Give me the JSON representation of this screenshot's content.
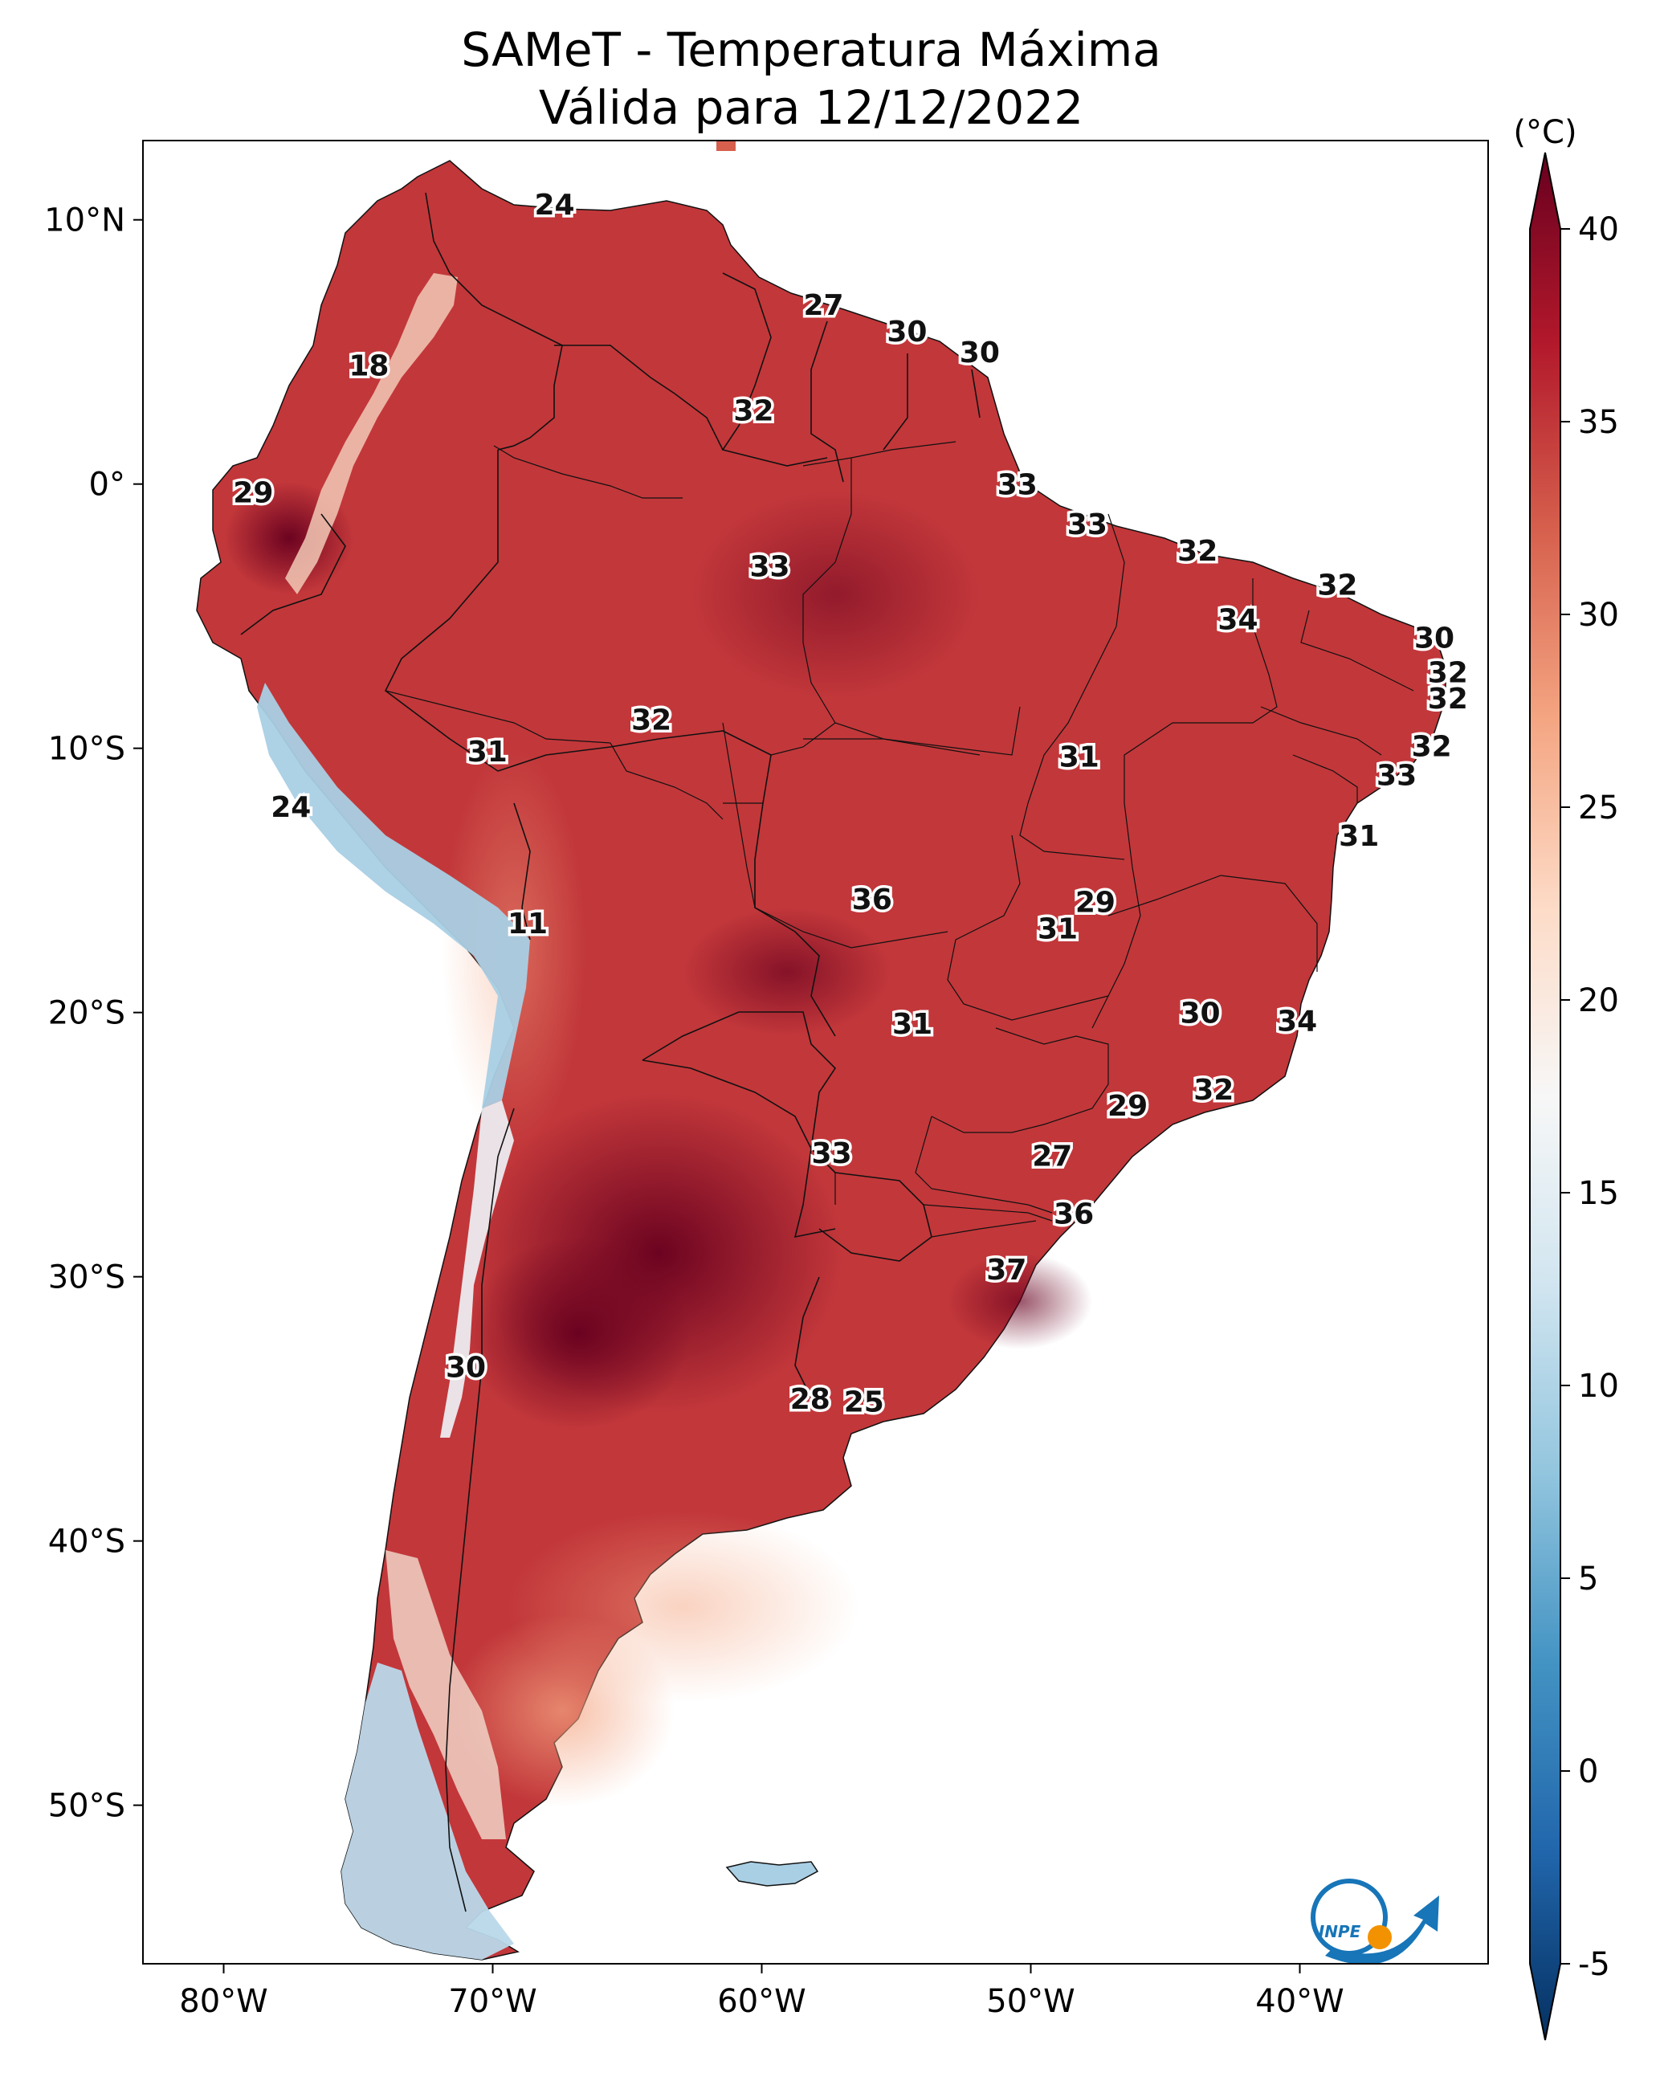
{
  "title": {
    "line1": "SAMeT - Temperatura Máxima",
    "line2": "Válida para 12/12/2022"
  },
  "map": {
    "lon_range": [
      -83,
      -33
    ],
    "lat_range": [
      -56,
      13
    ],
    "lat_ticks": [
      {
        "value": 10,
        "label": "10°N"
      },
      {
        "value": 0,
        "label": "0°"
      },
      {
        "value": -10,
        "label": "10°S"
      },
      {
        "value": -20,
        "label": "20°S"
      },
      {
        "value": -30,
        "label": "30°S"
      },
      {
        "value": -40,
        "label": "40°S"
      },
      {
        "value": -50,
        "label": "50°S"
      }
    ],
    "lon_ticks": [
      {
        "value": -80,
        "label": "80°W"
      },
      {
        "value": -70,
        "label": "70°W"
      },
      {
        "value": -60,
        "label": "60°W"
      },
      {
        "value": -50,
        "label": "50°W"
      },
      {
        "value": -40,
        "label": "40°W"
      }
    ],
    "labels": [
      {
        "text": "24",
        "lon": -67.7,
        "lat": 10.6
      },
      {
        "text": "27",
        "lon": -57.7,
        "lat": 6.8
      },
      {
        "text": "30",
        "lon": -54.6,
        "lat": 5.8
      },
      {
        "text": "30",
        "lon": -51.9,
        "lat": 5.0
      },
      {
        "text": "18",
        "lon": -74.6,
        "lat": 4.5
      },
      {
        "text": "32",
        "lon": -60.3,
        "lat": 2.8
      },
      {
        "text": "29",
        "lon": -78.9,
        "lat": -0.3
      },
      {
        "text": "33",
        "lon": -50.5,
        "lat": 0.0
      },
      {
        "text": "33",
        "lon": -47.9,
        "lat": -1.5
      },
      {
        "text": "32",
        "lon": -43.8,
        "lat": -2.5
      },
      {
        "text": "33",
        "lon": -59.7,
        "lat": -3.1
      },
      {
        "text": "32",
        "lon": -38.6,
        "lat": -3.8
      },
      {
        "text": "34",
        "lon": -42.3,
        "lat": -5.1
      },
      {
        "text": "30",
        "lon": -35.0,
        "lat": -5.8
      },
      {
        "text": "32",
        "lon": -34.5,
        "lat": -7.1
      },
      {
        "text": "32",
        "lon": -34.5,
        "lat": -8.1
      },
      {
        "text": "32",
        "lon": -64.1,
        "lat": -8.9
      },
      {
        "text": "31",
        "lon": -70.2,
        "lat": -10.1
      },
      {
        "text": "31",
        "lon": -48.2,
        "lat": -10.3
      },
      {
        "text": "32",
        "lon": -35.1,
        "lat": -9.9
      },
      {
        "text": "33",
        "lon": -36.4,
        "lat": -11.0
      },
      {
        "text": "24",
        "lon": -77.5,
        "lat": -12.2
      },
      {
        "text": "31",
        "lon": -37.8,
        "lat": -13.3
      },
      {
        "text": "36",
        "lon": -55.9,
        "lat": -15.7
      },
      {
        "text": "29",
        "lon": -47.6,
        "lat": -15.8
      },
      {
        "text": "11",
        "lon": -68.7,
        "lat": -16.6
      },
      {
        "text": "31",
        "lon": -49.0,
        "lat": -16.8
      },
      {
        "text": "30",
        "lon": -43.7,
        "lat": -20.0
      },
      {
        "text": "34",
        "lon": -40.1,
        "lat": -20.3
      },
      {
        "text": "31",
        "lon": -54.4,
        "lat": -20.4
      },
      {
        "text": "32",
        "lon": -43.2,
        "lat": -22.9
      },
      {
        "text": "29",
        "lon": -46.4,
        "lat": -23.5
      },
      {
        "text": "33",
        "lon": -57.4,
        "lat": -25.3
      },
      {
        "text": "27",
        "lon": -49.2,
        "lat": -25.4
      },
      {
        "text": "36",
        "lon": -48.4,
        "lat": -27.6
      },
      {
        "text": "37",
        "lon": -50.9,
        "lat": -29.7
      },
      {
        "text": "30",
        "lon": -71.0,
        "lat": -33.4
      },
      {
        "text": "28",
        "lon": -58.2,
        "lat": -34.6
      },
      {
        "text": "25",
        "lon": -56.2,
        "lat": -34.7
      }
    ],
    "logo_text": "INPE"
  },
  "colorbar": {
    "unit_label": "(°C)",
    "min": -5,
    "max": 40,
    "ticks": [
      {
        "value": 40,
        "label": "40"
      },
      {
        "value": 35,
        "label": "35"
      },
      {
        "value": 30,
        "label": "30"
      },
      {
        "value": 25,
        "label": "25"
      },
      {
        "value": 20,
        "label": "20"
      },
      {
        "value": 15,
        "label": "15"
      },
      {
        "value": 10,
        "label": "10"
      },
      {
        "value": 5,
        "label": "5"
      },
      {
        "value": 0,
        "label": "0"
      },
      {
        "value": -5,
        "label": "-5"
      }
    ],
    "colors": [
      "#053061",
      "#2166ac",
      "#4393c3",
      "#92c5de",
      "#d1e5f0",
      "#f7f7f7",
      "#fddbc7",
      "#f4a582",
      "#d6604d",
      "#b2182b",
      "#67001f"
    ]
  }
}
